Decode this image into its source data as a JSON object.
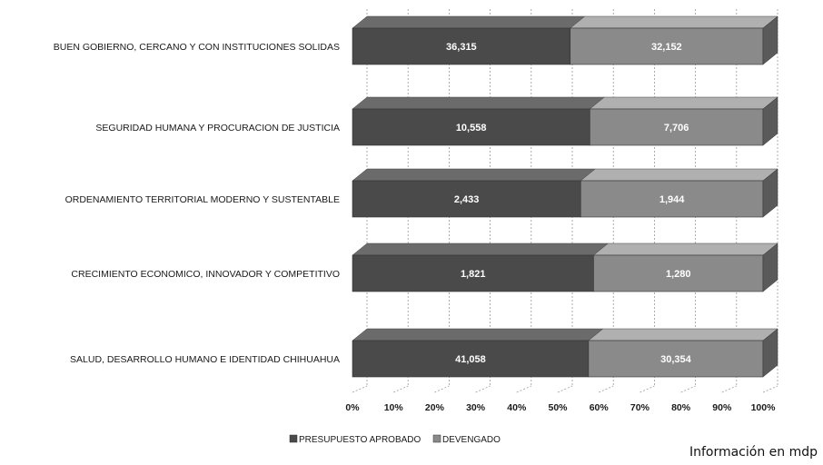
{
  "chart_data": {
    "type": "bar",
    "orientation": "horizontal",
    "stacked": "percent",
    "title": "",
    "xlabel": "",
    "ylabel": "",
    "categories": [
      "BUEN GOBIERNO, CERCANO Y CON INSTITUCIONES SOLIDAS",
      "SEGURIDAD HUMANA Y PROCURACION DE JUSTICIA",
      "ORDENAMIENTO TERRITORIAL MODERNO Y SUSTENTABLE",
      "CRECIMIENTO ECONOMICO, INNOVADOR Y COMPETITIVO",
      "SALUD, DESARROLLO HUMANO E IDENTIDAD CHIHUAHUA"
    ],
    "series": [
      {
        "name": "PRESUPUESTO APROBADO",
        "values": [
          36315,
          10558,
          2433,
          1821,
          41058
        ],
        "labels": [
          "36,315",
          "10,558",
          "2,433",
          "1,821",
          "41,058"
        ],
        "color": "#4a4a4a"
      },
      {
        "name": "DEVENGADO",
        "values": [
          32152,
          7706,
          1944,
          1280,
          30354
        ],
        "labels": [
          "32,152",
          "7,706",
          "1,944",
          "1,280",
          "30,354"
        ],
        "color": "#8a8a8a"
      }
    ],
    "xticks": [
      "0%",
      "10%",
      "20%",
      "30%",
      "40%",
      "50%",
      "60%",
      "70%",
      "80%",
      "90%",
      "100%"
    ],
    "xlim": [
      0,
      100
    ],
    "grid": true,
    "legend": "bottom"
  },
  "note": "Información en mdp"
}
